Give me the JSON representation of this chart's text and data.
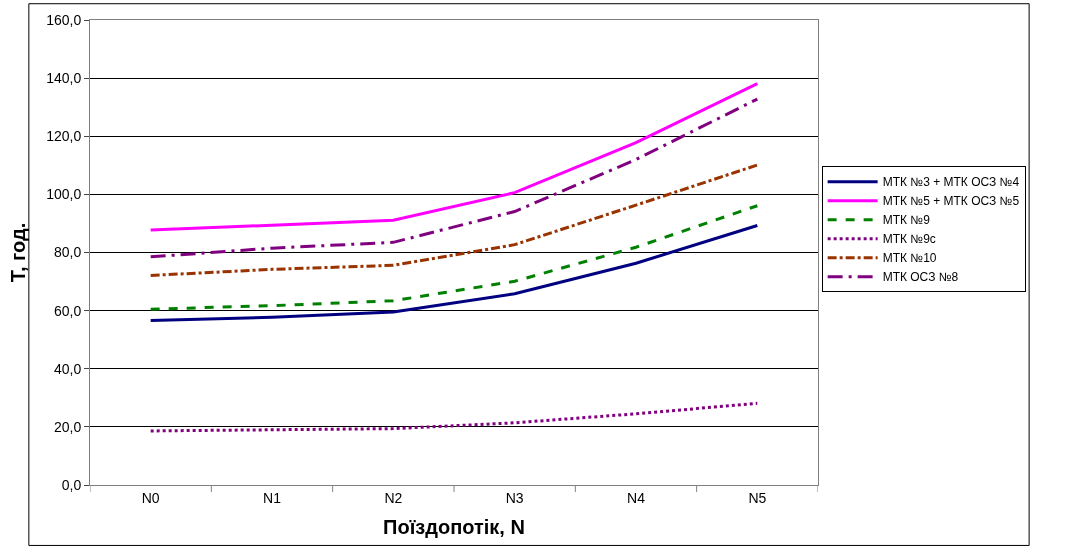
{
  "chart_data": {
    "type": "line",
    "xlabel": "Поїздопотік, N",
    "ylabel": "Т, год.",
    "categories": [
      "N0",
      "N1",
      "N2",
      "N3",
      "N4",
      "N5"
    ],
    "series": [
      {
        "name": "МТК №3 + МТК ОСЗ №4",
        "color": "#000080",
        "line_style": "solid",
        "values": [
          56.6,
          57.7,
          59.5,
          65.8,
          76.3,
          89.3
        ]
      },
      {
        "name": "МТК №5 + МТК ОСЗ №5",
        "color": "#ff00ff",
        "line_style": "solid",
        "values": [
          87.7,
          89.4,
          91.1,
          100.6,
          117.8,
          138.1
        ]
      },
      {
        "name": "МТК №9",
        "color": "#008000",
        "line_style": "dashed",
        "values": [
          60.5,
          61.7,
          63.4,
          70.1,
          81.8,
          96.1
        ]
      },
      {
        "name": "МТК №9с",
        "color": "#800080",
        "line_style": "dotted",
        "values": [
          18.6,
          19.0,
          19.4,
          21.4,
          24.5,
          28.1
        ]
      },
      {
        "name": "МТК №10",
        "color": "#993300",
        "line_style": "dashdot",
        "values": [
          72.1,
          74.2,
          75.6,
          82.7,
          96.3,
          110.1
        ]
      },
      {
        "name": "МТК ОСЗ №8",
        "color": "#800080",
        "line_style": "longdashdot",
        "values": [
          78.5,
          81.5,
          83.5,
          94.1,
          112.0,
          132.8
        ]
      }
    ],
    "ylim": [
      0,
      160
    ],
    "yticks": [
      {
        "value": 0,
        "label": "0,0"
      },
      {
        "value": 20,
        "label": "20,0"
      },
      {
        "value": 40,
        "label": "40,0"
      },
      {
        "value": 60,
        "label": "60,0"
      },
      {
        "value": 80,
        "label": "80,0"
      },
      {
        "value": 100,
        "label": "100,0"
      },
      {
        "value": 120,
        "label": "120,0"
      },
      {
        "value": 140,
        "label": "140,0"
      },
      {
        "value": 160,
        "label": "160,0"
      }
    ],
    "grid": "y",
    "legend": "right",
    "marker": "none"
  }
}
